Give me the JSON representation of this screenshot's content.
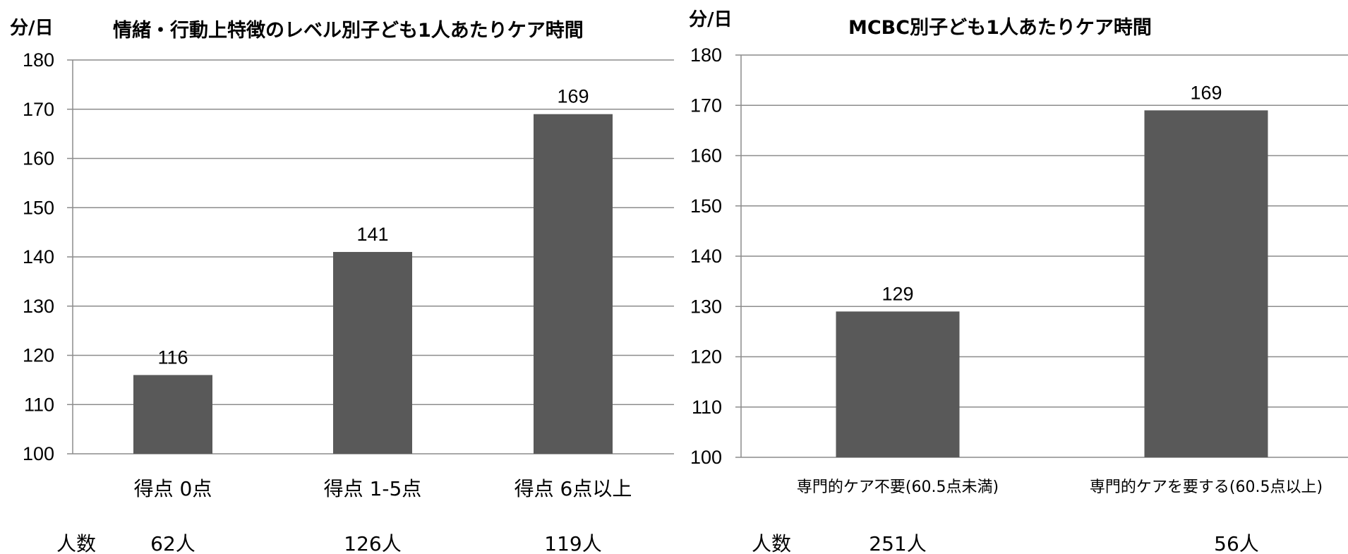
{
  "chart_data": [
    {
      "type": "bar",
      "title": "情緒・行動上特徴のレベル別子ども1人あたりケア時間",
      "unit_label": "分/日",
      "categories": [
        "得点 0点",
        "得点 1-5点",
        "得点 6点以上"
      ],
      "values": [
        116,
        141,
        169
      ],
      "data_labels": [
        "116",
        "141",
        "169"
      ],
      "ylim": [
        100,
        180
      ],
      "yticks": [
        "100",
        "110",
        "120",
        "130",
        "140",
        "150",
        "160",
        "170",
        "180"
      ],
      "grid": true,
      "bar_color": "#595959",
      "count_label": "人数",
      "counts": [
        "62人",
        "126人",
        "119人"
      ]
    },
    {
      "type": "bar",
      "title": "MCBC別子ども1人あたりケア時間",
      "unit_label": "分/日",
      "categories": [
        "専門的ケア不要(60.5点未満)",
        "専門的ケアを要する(60.5点以上)"
      ],
      "values": [
        129,
        169
      ],
      "data_labels": [
        "129",
        "169"
      ],
      "ylim": [
        100,
        180
      ],
      "yticks": [
        "100",
        "110",
        "120",
        "130",
        "140",
        "150",
        "160",
        "170",
        "180"
      ],
      "grid": true,
      "bar_color": "#595959",
      "count_label": "人数",
      "counts": [
        "251人",
        "56人"
      ]
    }
  ]
}
